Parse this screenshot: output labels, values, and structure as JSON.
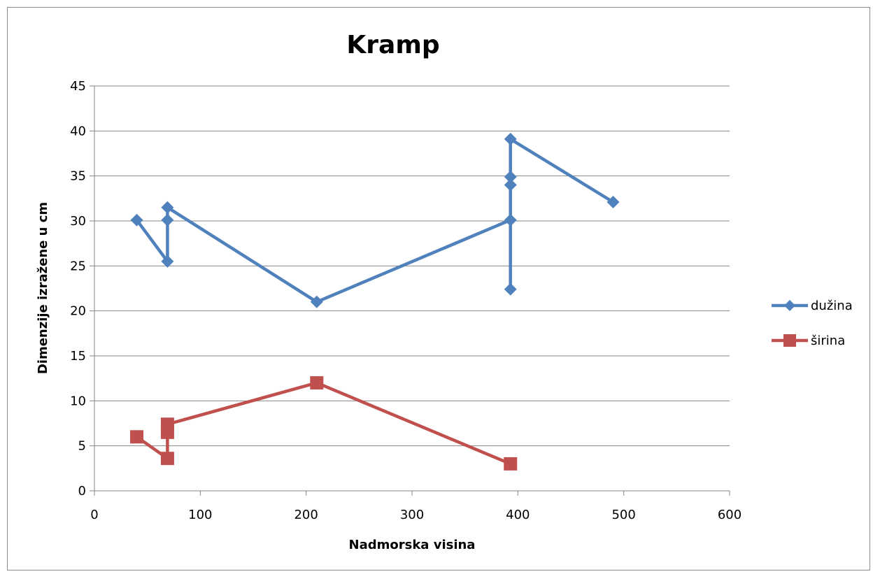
{
  "chart_data": {
    "type": "scatter",
    "title": "Kramp",
    "xlabel": "Nadmorska visina",
    "ylabel": "Dimenzije izražene u cm",
    "xlim": [
      0,
      600
    ],
    "ylim": [
      0,
      45
    ],
    "xticks": [
      0,
      100,
      200,
      300,
      400,
      500,
      600
    ],
    "yticks": [
      0,
      5,
      10,
      15,
      20,
      25,
      30,
      35,
      40,
      45
    ],
    "grid": "horizontal",
    "legend_position": "right",
    "lines_connect_points": true,
    "series": [
      {
        "name": "dužina",
        "color": "#4F81BD",
        "marker": "diamond",
        "points": [
          [
            40,
            30.1
          ],
          [
            69,
            25.5
          ],
          [
            69,
            30.1
          ],
          [
            69,
            31.5
          ],
          [
            210,
            21
          ],
          [
            393,
            30.1
          ],
          [
            393,
            22.4
          ],
          [
            393,
            34
          ],
          [
            393,
            34.9
          ],
          [
            393,
            39.1
          ],
          [
            490,
            32.1
          ]
        ]
      },
      {
        "name": "širina",
        "color": "#C0504D",
        "marker": "square",
        "points": [
          [
            40,
            6
          ],
          [
            69,
            3.6
          ],
          [
            69,
            6.5
          ],
          [
            69,
            7.4
          ],
          [
            210,
            12
          ],
          [
            393,
            3
          ]
        ]
      }
    ]
  }
}
